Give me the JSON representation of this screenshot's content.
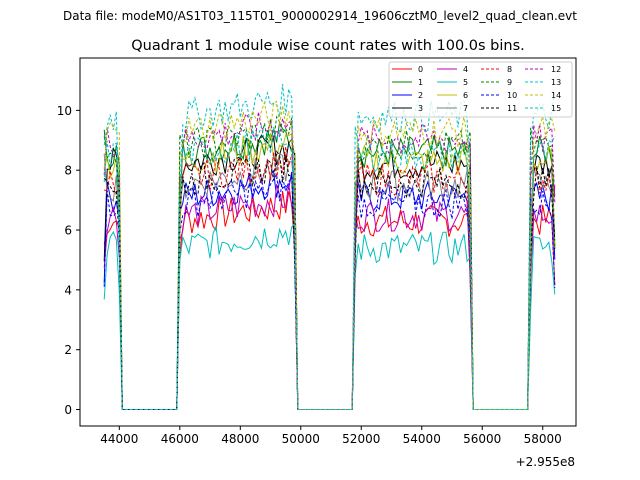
{
  "chart_data": {
    "type": "line",
    "suptitle": "Data file: modeM0/AS1T03_115T01_9000002914_19606cztM0_level2_quad_clean.evt",
    "title": "Quadrant 1 module wise count rates with 100.0s bins.",
    "xlabel": "",
    "ylabel": "",
    "offset_label": "+2.955e8",
    "x_offset": 295500000,
    "xlim": [
      42700,
      59100
    ],
    "ylim": [
      -0.55,
      11.75
    ],
    "xticks": [
      44000,
      46000,
      48000,
      50000,
      52000,
      54000,
      56000,
      58000
    ],
    "xtick_labels": [
      "44000",
      "46000",
      "48000",
      "50000",
      "52000",
      "54000",
      "56000",
      "58000"
    ],
    "yticks": [
      0,
      2,
      4,
      6,
      8,
      10
    ],
    "ytick_labels": [
      "0",
      "2",
      "4",
      "6",
      "8",
      "10"
    ],
    "legend_position": "top-right",
    "segments": [
      {
        "start": 43500,
        "end": 44000
      },
      {
        "start": 46000,
        "end": 49800
      },
      {
        "start": 51800,
        "end": 55600
      },
      {
        "start": 57600,
        "end": 58400
      }
    ],
    "series": [
      {
        "name": "0",
        "color": "#ff0000",
        "dashed": false,
        "level": 6.3
      },
      {
        "name": "1",
        "color": "#008000",
        "dashed": false,
        "level": 8.6
      },
      {
        "name": "2",
        "color": "#0000ff",
        "dashed": false,
        "level": 7.1
      },
      {
        "name": "3",
        "color": "#000000",
        "dashed": false,
        "level": 8.2
      },
      {
        "name": "4",
        "color": "#bf00bf",
        "dashed": false,
        "level": 6.5
      },
      {
        "name": "5",
        "color": "#00bfbf",
        "dashed": false,
        "level": 5.4
      },
      {
        "name": "6",
        "color": "#bfbf00",
        "dashed": false,
        "level": 8.3
      },
      {
        "name": "7",
        "color": "#808080",
        "dashed": false,
        "level": 7.5
      },
      {
        "name": "8",
        "color": "#ff0000",
        "dashed": true,
        "level": 7.7
      },
      {
        "name": "9",
        "color": "#008000",
        "dashed": true,
        "level": 8.8
      },
      {
        "name": "10",
        "color": "#0000ff",
        "dashed": true,
        "level": 6.9
      },
      {
        "name": "11",
        "color": "#000000",
        "dashed": true,
        "level": 7.6
      },
      {
        "name": "12",
        "color": "#bf00bf",
        "dashed": true,
        "level": 9.0
      },
      {
        "name": "13",
        "color": "#00bfbf",
        "dashed": true,
        "level": 9.8
      },
      {
        "name": "14",
        "color": "#bfbf00",
        "dashed": true,
        "level": 9.3
      },
      {
        "name": "15",
        "color": "#00bfbf",
        "dashed": true,
        "level": 8.5
      }
    ]
  }
}
